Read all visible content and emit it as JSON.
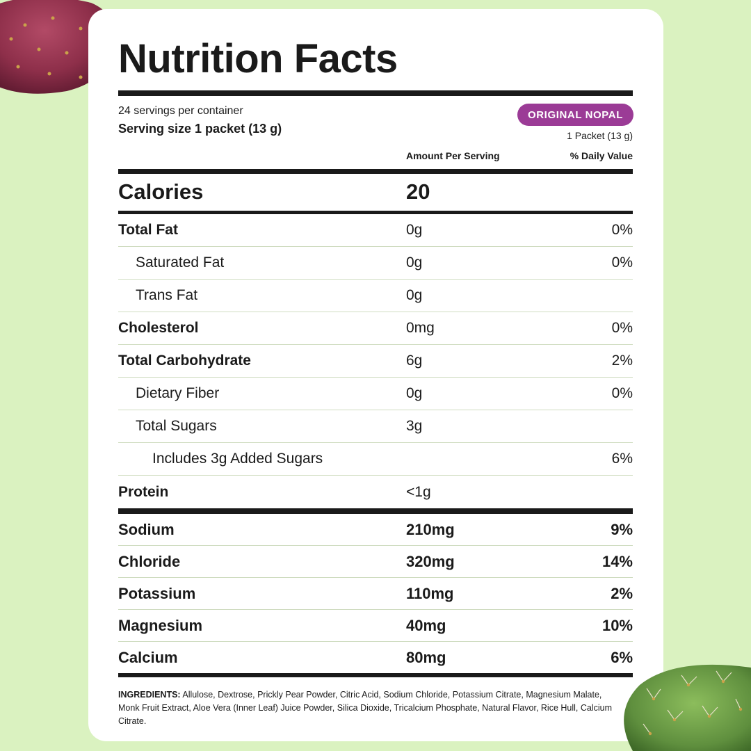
{
  "label": {
    "title": "Nutrition Facts",
    "servings_per_container": "24 servings per container",
    "serving_size": "Serving size 1 packet (13 g)",
    "flavor_badge": "ORIGINAL NOPAL",
    "column_serving": "1 Packet (13 g)",
    "header_amount": "Amount Per Serving",
    "header_daily": "% Daily Value",
    "calories_label": "Calories",
    "calories_value": "20",
    "nutrients": [
      {
        "name": "Total Fat",
        "amount": "0g",
        "dv": "0%"
      },
      {
        "name": "Saturated Fat",
        "amount": "0g",
        "dv": "0%"
      },
      {
        "name": "Trans Fat",
        "amount": "0g",
        "dv": ""
      },
      {
        "name": "Cholesterol",
        "amount": "0mg",
        "dv": "0%"
      },
      {
        "name": "Total Carbohydrate",
        "amount": "6g",
        "dv": "2%"
      },
      {
        "name": "Dietary Fiber",
        "amount": "0g",
        "dv": "0%"
      },
      {
        "name": "Total Sugars",
        "amount": "3g",
        "dv": ""
      },
      {
        "name": "Includes 3g Added Sugars",
        "amount": "",
        "dv": "6%"
      },
      {
        "name": "Protein",
        "amount": "<1g",
        "dv": ""
      }
    ],
    "minerals": [
      {
        "name": "Sodium",
        "amount": "210mg",
        "dv": "9%"
      },
      {
        "name": "Chloride",
        "amount": "320mg",
        "dv": "14%"
      },
      {
        "name": "Potassium",
        "amount": "110mg",
        "dv": "2%"
      },
      {
        "name": "Magnesium",
        "amount": "40mg",
        "dv": "10%"
      },
      {
        "name": "Calcium",
        "amount": "80mg",
        "dv": "6%"
      }
    ],
    "ingredients_heading": "INGREDIENTS:",
    "ingredients_text": "Allulose, Dextrose, Prickly Pear Powder, Citric Acid, Sodium Chloride, Potassium Citrate, Magnesium Malate, Monk Fruit Extract, Aloe Vera (Inner Leaf) Juice Powder, Silica Dioxide, Tricalcium Phosphate, Natural Flavor, Rice Hull, Calcium Citrate."
  },
  "colors": {
    "background": "#daf2c0",
    "badge": "#9b3b96",
    "fruit": "#8e2f4a",
    "cactus": "#5f8f3e"
  },
  "decor": {
    "fruit_icon": "prickly-pear-fruit-icon",
    "cactus_icon": "cactus-pad-icon"
  }
}
